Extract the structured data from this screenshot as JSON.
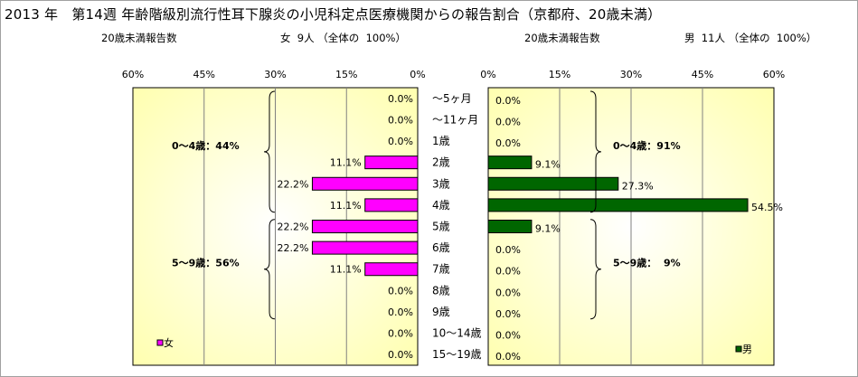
{
  "title": "2013 年　第14週 年齢階級別流行性耳下腺炎の小児科定点医療機関からの報告割合（京都府、20歳未満）",
  "left_header": {
    "label": "20歳未満報告数",
    "summary": "女  9人 （全体の  100%）"
  },
  "right_header": {
    "label": "20歳未満報告数",
    "summary": "男  11人 （全体の  100%）"
  },
  "chart_data": {
    "type": "bar",
    "orientation": "horizontal-butterfly",
    "categories": [
      "～5ヶ月",
      "～11ヶ月",
      "1歳",
      "2歳",
      "3歳",
      "4歳",
      "5歳",
      "6歳",
      "7歳",
      "8歳",
      "9歳",
      "10～14歳",
      "15～19歳"
    ],
    "series": [
      {
        "name": "女",
        "side": "left",
        "color": "#ff00ff",
        "values": [
          0.0,
          0.0,
          0.0,
          11.1,
          22.2,
          11.1,
          22.2,
          22.2,
          11.1,
          0.0,
          0.0,
          0.0,
          0.0
        ],
        "labels": [
          "0.0%",
          "0.0%",
          "0.0%",
          "11.1%",
          "22.2%",
          "11.1%",
          "22.2%",
          "22.2%",
          "11.1%",
          "0.0%",
          "0.0%",
          "0.0%",
          "0.0%"
        ]
      },
      {
        "name": "男",
        "side": "right",
        "color": "#006600",
        "values": [
          0.0,
          0.0,
          0.0,
          9.1,
          27.3,
          54.5,
          9.1,
          0.0,
          0.0,
          0.0,
          0.0,
          0.0,
          0.0
        ],
        "labels": [
          "0.0%",
          "0.0%",
          "0.0%",
          "9.1%",
          "27.3%",
          "54.5%",
          "9.1%",
          "0.0%",
          "0.0%",
          "0.0%",
          "0.0%",
          "0.0%",
          "0.0%"
        ]
      }
    ],
    "left_axis": {
      "ticks": [
        "60%",
        "45%",
        "30%",
        "15%",
        "0%"
      ],
      "range": [
        60,
        0
      ]
    },
    "right_axis": {
      "ticks": [
        "0%",
        "15%",
        "30%",
        "45%",
        "60%"
      ],
      "range": [
        0,
        60
      ]
    },
    "grid": true,
    "group_annotations": {
      "left": [
        {
          "text": "0～4歳：44%",
          "from": 0,
          "to": 5
        },
        {
          "text": "5～9歳：56%",
          "from": 6,
          "to": 10
        }
      ],
      "right": [
        {
          "text": "0～4歳：91%",
          "from": 0,
          "to": 5
        },
        {
          "text": "5～9歳：  9%",
          "from": 6,
          "to": 10
        }
      ]
    },
    "legend": {
      "left": "女",
      "right": "男",
      "placement": "bottom-left / bottom-right"
    }
  },
  "colors": {
    "plot_bg_center": "#ffffff",
    "plot_bg_edge": "#ffffc0",
    "grid": "#808080"
  }
}
